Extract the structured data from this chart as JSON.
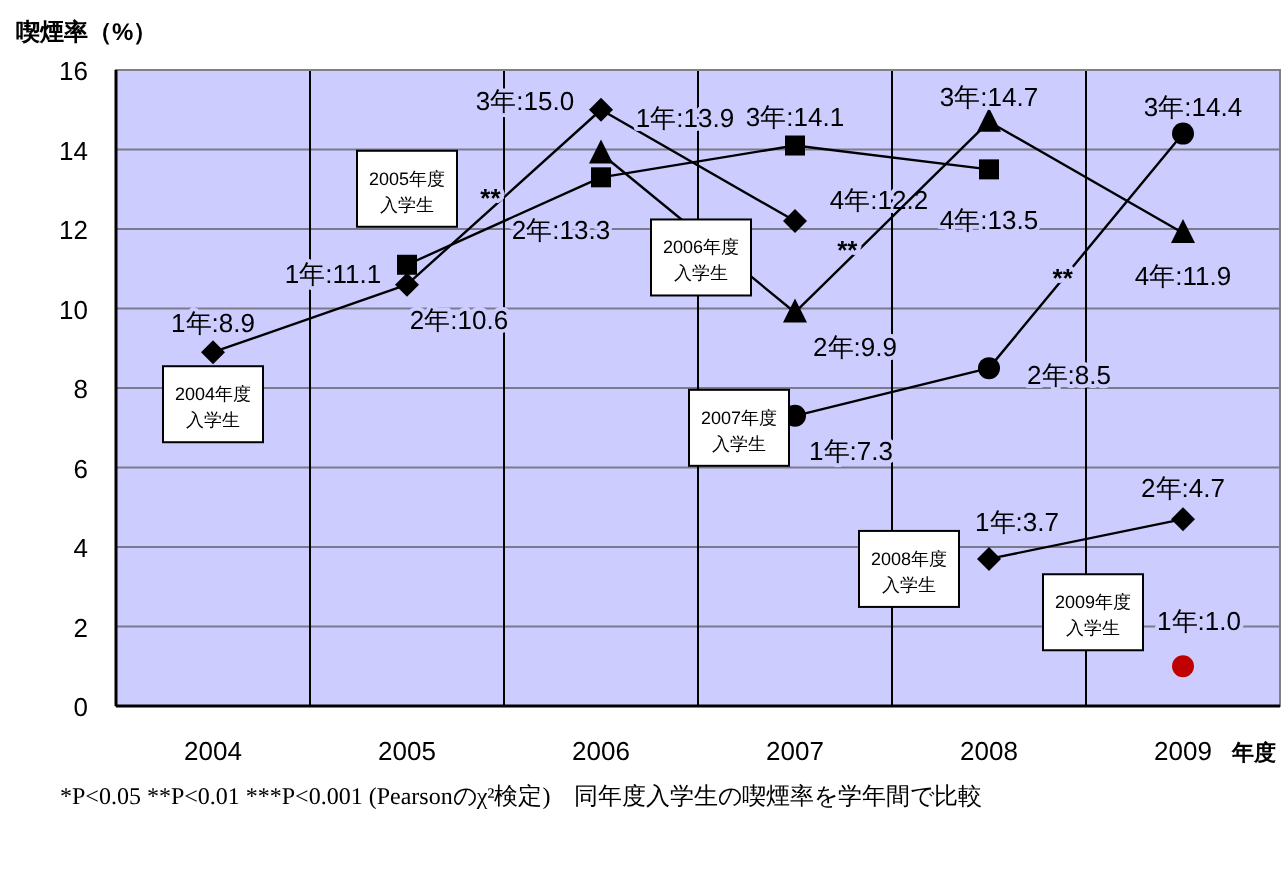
{
  "chart_data": {
    "type": "line",
    "ylabel": "喫煙率（%）",
    "xlabel": "年度",
    "xlim": [
      2003.5,
      2009.5
    ],
    "xticks": [
      2004,
      2005,
      2006,
      2007,
      2008,
      2009
    ],
    "ylim": [
      0,
      16
    ],
    "yticks": [
      0,
      2,
      4,
      6,
      8,
      10,
      12,
      14,
      16
    ],
    "grid": "y",
    "ref_lines": [
      {
        "axis": "x",
        "value": 2004.5,
        "label": null
      },
      {
        "axis": "x",
        "value": 2005.5,
        "label": null
      },
      {
        "axis": "x",
        "value": 2006.5,
        "label": null
      },
      {
        "axis": "x",
        "value": 2007.5,
        "label": null
      },
      {
        "axis": "x",
        "value": 2008.5,
        "label": null
      }
    ],
    "series": [
      {
        "name": "2004年度入学生",
        "color": "#000000",
        "marker": "diamond",
        "x": [
          2004,
          2005,
          2006,
          2007
        ],
        "values": [
          8.9,
          10.6,
          15.0,
          12.2
        ],
        "value_labels": [
          "1年:8.9",
          "2年:10.6",
          "3年:15.0",
          "4年:12.2"
        ]
      },
      {
        "name": "2005年度入学生",
        "color": "#000000",
        "marker": "square",
        "x": [
          2005,
          2006,
          2007,
          2008
        ],
        "values": [
          11.1,
          13.3,
          14.1,
          13.5
        ],
        "value_labels": [
          "1年:11.1",
          "2年:13.3",
          "3年:14.1",
          "4年:13.5"
        ]
      },
      {
        "name": "2006年度入学生",
        "color": "#000000",
        "marker": "triangle",
        "x": [
          2006,
          2007,
          2008,
          2009
        ],
        "values": [
          13.9,
          9.9,
          14.7,
          11.9
        ],
        "value_labels": [
          "1年:13.9",
          "2年:9.9",
          "3年:14.7",
          "4年:11.9"
        ]
      },
      {
        "name": "2007年度入学生",
        "color": "#000000",
        "marker": "circle",
        "x": [
          2007,
          2008,
          2009
        ],
        "values": [
          7.3,
          8.5,
          14.4
        ],
        "value_labels": [
          "1年:7.3",
          "2年:8.5",
          "3年:14.4"
        ]
      },
      {
        "name": "2008年度入学生",
        "color": "#000000",
        "marker": "diamond",
        "x": [
          2008,
          2009
        ],
        "values": [
          3.7,
          4.7
        ],
        "value_labels": [
          "1年:3.7",
          "2年:4.7"
        ]
      },
      {
        "name": "2009年度入学生",
        "color": "#c00000",
        "marker": "circle",
        "x": [
          2009
        ],
        "values": [
          1.0
        ],
        "value_labels": [
          "1年:1.0"
        ]
      }
    ],
    "annotations": [
      {
        "text": "**",
        "x": 2005.43,
        "y": 12.8
      },
      {
        "text": "**",
        "x": 2007.27,
        "y": 11.5
      },
      {
        "text": "**",
        "x": 2008.38,
        "y": 10.8
      },
      "*P<0.05  **P<0.01  ***P<0.001 (Pearsonのχ²検定)　同年度入学生の喫煙率を学年間で比較"
    ]
  }
}
